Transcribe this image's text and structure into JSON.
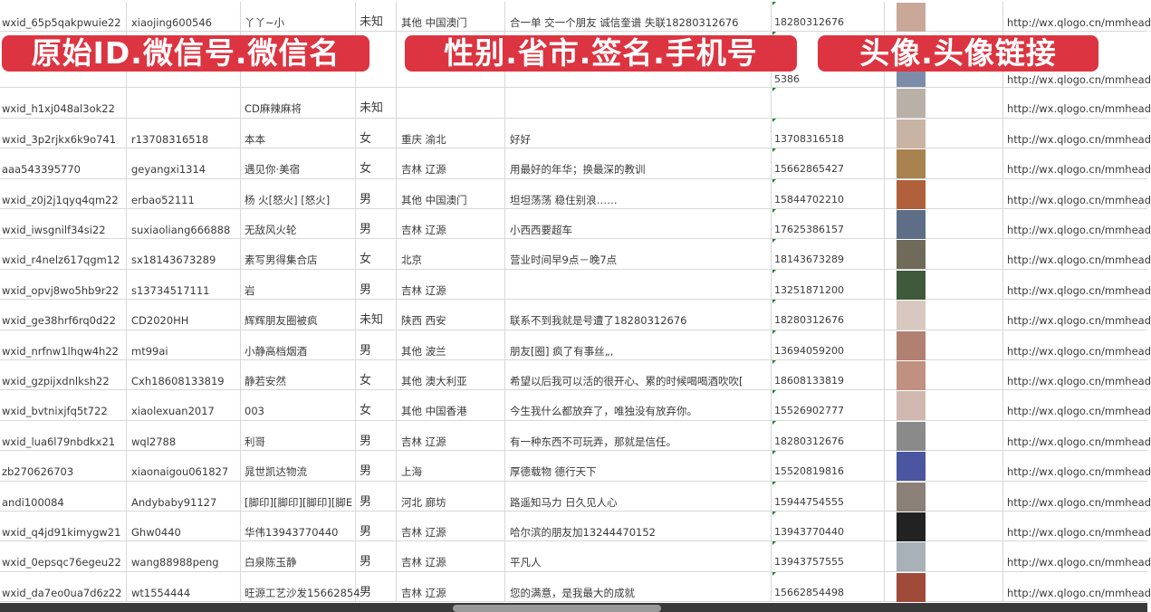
{
  "banners": [
    "原始ID.微信号.微信名",
    "性别.省市.签名.手机号",
    "头像.头像链接"
  ],
  "avatar_colors": [
    "#c9a89a",
    "#7d8ca8",
    "#b9b0a8",
    "#c8b4a4",
    "#a8824f",
    "#b0603a",
    "#5d6e86",
    "#6f6a5a",
    "#3e5a3a",
    "#d8c8c0",
    "#b08070",
    "#c09080",
    "#d0b8b0",
    "#8a8a8a",
    "#4a56a0",
    "#8a8078",
    "#222222",
    "#a8b0b8",
    "#a04a3a"
  ],
  "rows": [
    {
      "id": "wxid_65p5qakpwuie22",
      "wechat": "xiaojing600546",
      "name": "丫丫~小",
      "gender": "未知",
      "region": "其他 中国澳门",
      "signature": "合一单 交一个朋友 诚信奎谱 失联18280312676",
      "phone": "18280312676",
      "link": "http://wx.qlogo.cn/mmhead"
    },
    {
      "id": "",
      "wechat": "",
      "name": "",
      "gender": "",
      "region": "",
      "signature": "",
      "phone": "5386",
      "link": "http://wx.qlogo.cn/mmhead"
    },
    {
      "id": "wxid_h1xj048al3ok22",
      "wechat": "",
      "name": "CD麻辣麻将",
      "gender": "未知",
      "region": "",
      "signature": "",
      "phone": "",
      "link": "http://wx.qlogo.cn/mmhead"
    },
    {
      "id": "wxid_3p2rjkx6k9o741",
      "wechat": "r13708316518",
      "name": "本本",
      "gender": "女",
      "region": "重庆 渝北",
      "signature": "好好",
      "phone": "13708316518",
      "link": "http://wx.qlogo.cn/mmhead"
    },
    {
      "id": "aaa543395770",
      "wechat": "geyangxi1314",
      "name": "遇见你·美宿",
      "gender": "女",
      "region": "吉林 辽源",
      "signature": "用最好的年华；换最深的教训",
      "phone": "15662865427",
      "link": "http://wx.qlogo.cn/mmhead"
    },
    {
      "id": "wxid_z0j2j1qyq4qm22",
      "wechat": "erbao52111",
      "name": "杨 火[怒火] [怒火]",
      "gender": "男",
      "region": "其他 中国澳门",
      "signature": "坦坦荡荡 稳住别浪……",
      "phone": "15844702210",
      "link": "http://wx.qlogo.cn/mmhead"
    },
    {
      "id": "wxid_iwsgnilf34si22",
      "wechat": "suxiaoliang666888",
      "name": "无敌风火轮",
      "gender": "男",
      "region": "吉林 辽源",
      "signature": "小西西要超车",
      "phone": "17625386157",
      "link": "http://wx.qlogo.cn/mmhead"
    },
    {
      "id": "wxid_r4nelz617qgm12",
      "wechat": "sx18143673289",
      "name": "素写男得集合店",
      "gender": "女",
      "region": "北京",
      "signature": "营业时间早9点－晚7点",
      "phone": "18143673289",
      "link": "http://wx.qlogo.cn/mmhead"
    },
    {
      "id": "wxid_opvj8wo5hb9r22",
      "wechat": "s13734517111",
      "name": "岩",
      "gender": "男",
      "region": "吉林 辽源",
      "signature": "",
      "phone": "13251871200",
      "link": "http://wx.qlogo.cn/mmhead"
    },
    {
      "id": "wxid_ge38hrf6rq0d22",
      "wechat": "CD2020HH",
      "name": "辉辉朋友圈被疯",
      "gender": "未知",
      "region": "陕西 西安",
      "signature": "联系不到我就是号遭了18280312676",
      "phone": "18280312676",
      "link": "http://wx.qlogo.cn/mmhead"
    },
    {
      "id": "wxid_nrfnw1lhqw4h22",
      "wechat": "mt99ai",
      "name": "小静高档烟酒",
      "gender": "男",
      "region": "其他 波兰",
      "signature": "朋友[圈] 疯了有事丝„,",
      "phone": "13694059200",
      "link": "http://wx.qlogo.cn/mmhead"
    },
    {
      "id": "wxid_gzpijxdnlksh22",
      "wechat": "Cxh18608133819",
      "name": "静若安然",
      "gender": "女",
      "region": "其他 澳大利亚",
      "signature": "希望以后我可以活的很开心、累的时候喝喝酒吹吹[",
      "phone": "18608133819",
      "link": "http://wx.qlogo.cn/mmhead"
    },
    {
      "id": "wxid_bvtnixjfq5t722",
      "wechat": "xiaolexuan2017",
      "name": "003",
      "gender": "女",
      "region": "其他 中国香港",
      "signature": "今生我什么都放弃了，唯独没有放弃你。",
      "phone": "15526902777",
      "link": "http://wx.qlogo.cn/mmhead"
    },
    {
      "id": "wxid_lua6l79nbdkx21",
      "wechat": "wql2788",
      "name": "利哥",
      "gender": "男",
      "region": "吉林 辽源",
      "signature": "有一种东西不可玩弄，那就是信任。",
      "phone": "18280312676",
      "link": "http://wx.qlogo.cn/mmhead"
    },
    {
      "id": "zb270626703",
      "wechat": "xiaonaigou061827",
      "name": "晁世凯达物流",
      "gender": "男",
      "region": "上海",
      "signature": "厚德载物 德行天下",
      "phone": "15520819816",
      "link": "http://wx.qlogo.cn/mmhead"
    },
    {
      "id": "andi100084",
      "wechat": "Andybaby91127",
      "name": "[脚印][脚印][脚印][脚E",
      "gender": "男",
      "region": "河北 廊坊",
      "signature": "路遥知马力 日久见人心",
      "phone": "15944754555",
      "link": "http://wx.qlogo.cn/mmhead"
    },
    {
      "id": "wxid_q4jd91kimygw21",
      "wechat": "Ghw0440",
      "name": "华伟13943770440",
      "gender": "男",
      "region": "吉林 辽源",
      "signature": "哈尔滨的朋友加13244470152",
      "phone": "13943770440",
      "link": "http://wx.qlogo.cn/mmhead"
    },
    {
      "id": "wxid_0epsqc76egeu22",
      "wechat": "wang88988peng",
      "name": "白泉陈玉静",
      "gender": "男",
      "region": "吉林 辽源",
      "signature": "平凡人",
      "phone": "13943757555",
      "link": "http://wx.qlogo.cn/mmhead"
    },
    {
      "id": "wxid_da7eo0ua7d6z22",
      "wechat": "wt1554444",
      "name": "旺源工艺沙发15662854",
      "gender": "男",
      "region": "吉林 辽源",
      "signature": "您的满意，是我最大的成就",
      "phone": "15662854498",
      "link": "http://wx.qlogo.cn/mmhead"
    }
  ]
}
